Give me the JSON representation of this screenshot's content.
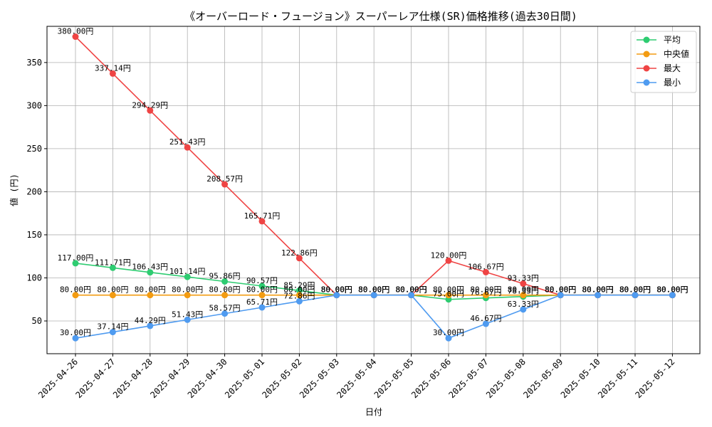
{
  "chart_data": {
    "type": "line",
    "title": "《オーバーロード・フュージョン》スーパーレア仕様(SR)価格推移(過去30日間)",
    "xlabel": "日付",
    "ylabel": "値 (円)",
    "ylim": [
      12,
      392
    ],
    "yticks": [
      50,
      100,
      150,
      200,
      250,
      300,
      350
    ],
    "grid": true,
    "legend_position": "top-right",
    "label_suffix": "円",
    "categories": [
      "2025-04-26",
      "2025-04-27",
      "2025-04-28",
      "2025-04-29",
      "2025-04-30",
      "2025-05-01",
      "2025-05-02",
      "2025-05-03",
      "2025-05-04",
      "2025-05-05",
      "2025-05-06",
      "2025-05-07",
      "2025-05-08",
      "2025-05-09",
      "2025-05-10",
      "2025-05-11",
      "2025-05-12"
    ],
    "series": [
      {
        "name": "平均",
        "color": "#2ecc71",
        "values": [
          117.0,
          111.71,
          106.43,
          101.14,
          95.86,
          90.57,
          85.29,
          80.0,
          80.0,
          80.0,
          75.0,
          76.67,
          78.33,
          80.0,
          80.0,
          80.0,
          80.0
        ]
      },
      {
        "name": "中央値",
        "color": "#f39c12",
        "values": [
          80.0,
          80.0,
          80.0,
          80.0,
          80.0,
          80.0,
          80.0,
          80.0,
          80.0,
          80.0,
          80.0,
          80.0,
          80.0,
          80.0,
          80.0,
          80.0,
          80.0
        ]
      },
      {
        "name": "最大",
        "color": "#ef4444",
        "values": [
          380.0,
          337.14,
          294.29,
          251.43,
          208.57,
          165.71,
          122.86,
          80.0,
          80.0,
          80.0,
          120.0,
          106.67,
          93.33,
          80.0,
          80.0,
          80.0,
          80.0
        ]
      },
      {
        "name": "最小",
        "color": "#4f9bf0",
        "values": [
          30.0,
          37.14,
          44.29,
          51.43,
          58.57,
          65.71,
          72.86,
          80.0,
          80.0,
          80.0,
          30.0,
          46.67,
          63.33,
          80.0,
          80.0,
          80.0,
          80.0
        ]
      }
    ]
  }
}
